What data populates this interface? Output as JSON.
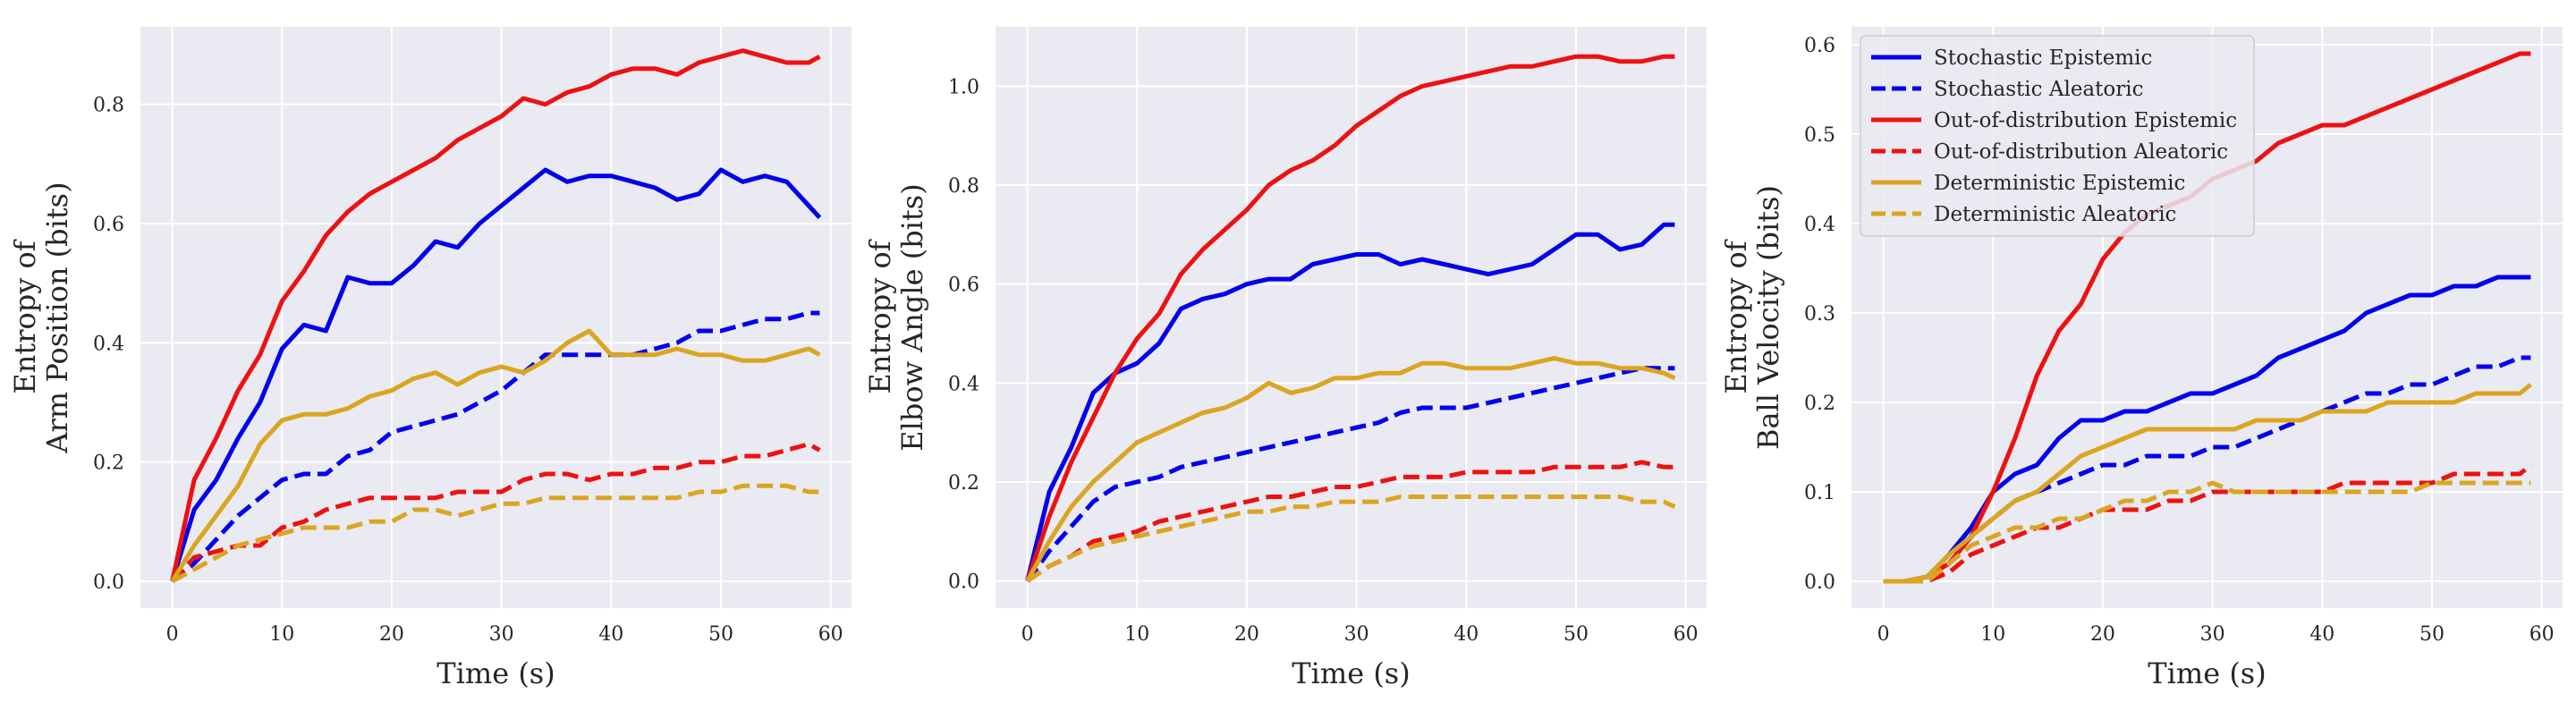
{
  "colors": {
    "background": "#eaeaf2",
    "grid": "#ffffff",
    "blue": "#0000ee",
    "red": "#ee1111",
    "gold": "#daa520"
  },
  "legend": {
    "location": "top-left of third panel",
    "entries": [
      {
        "label": "Stochastic Epistemic",
        "color": "#0000ee",
        "dash": false
      },
      {
        "label": "Stochastic Aleatoric",
        "color": "#0000ee",
        "dash": true
      },
      {
        "label": "Out-of-distribution Epistemic",
        "color": "#ee1111",
        "dash": false
      },
      {
        "label": "Out-of-distribution Aleatoric",
        "color": "#ee1111",
        "dash": true
      },
      {
        "label": "Deterministic Epistemic",
        "color": "#daa520",
        "dash": false
      },
      {
        "label": "Deterministic Aleatoric",
        "color": "#daa520",
        "dash": true
      }
    ]
  },
  "chart_data": [
    {
      "type": "line",
      "xlabel": "Time (s)",
      "ylabel_lines": [
        "Entropy of",
        "Arm Position (bits)"
      ],
      "xlim": [
        -2.9,
        61.9
      ],
      "ylim": [
        -0.045,
        0.93
      ],
      "xticks": [
        0,
        10,
        20,
        30,
        40,
        50,
        60
      ],
      "yticks": [
        0.0,
        0.2,
        0.4,
        0.6,
        0.8
      ],
      "ytick_labels": [
        "0.0",
        "0.2",
        "0.4",
        "0.6",
        "0.8"
      ],
      "grid": true,
      "x": [
        0,
        2,
        4,
        6,
        8,
        10,
        12,
        14,
        16,
        18,
        20,
        22,
        24,
        26,
        28,
        30,
        32,
        34,
        36,
        38,
        40,
        42,
        44,
        46,
        48,
        50,
        52,
        54,
        56,
        58,
        59
      ],
      "series": [
        {
          "name": "Stochastic Epistemic",
          "color": "#0000ee",
          "dash": false,
          "values": [
            0.0,
            0.12,
            0.17,
            0.24,
            0.3,
            0.39,
            0.43,
            0.42,
            0.51,
            0.5,
            0.5,
            0.53,
            0.57,
            0.56,
            0.6,
            0.63,
            0.66,
            0.69,
            0.67,
            0.68,
            0.68,
            0.67,
            0.66,
            0.64,
            0.65,
            0.69,
            0.67,
            0.68,
            0.67,
            0.63,
            0.61
          ]
        },
        {
          "name": "Stochastic Aleatoric",
          "color": "#0000ee",
          "dash": true,
          "values": [
            0.0,
            0.03,
            0.07,
            0.11,
            0.14,
            0.17,
            0.18,
            0.18,
            0.21,
            0.22,
            0.25,
            0.26,
            0.27,
            0.28,
            0.3,
            0.32,
            0.35,
            0.38,
            0.38,
            0.38,
            0.38,
            0.38,
            0.39,
            0.4,
            0.42,
            0.42,
            0.43,
            0.44,
            0.44,
            0.45,
            0.45
          ]
        },
        {
          "name": "Out-of-distribution Epistemic",
          "color": "#ee1111",
          "dash": false,
          "values": [
            0.0,
            0.17,
            0.24,
            0.32,
            0.38,
            0.47,
            0.52,
            0.58,
            0.62,
            0.65,
            0.67,
            0.69,
            0.71,
            0.74,
            0.76,
            0.78,
            0.81,
            0.8,
            0.82,
            0.83,
            0.85,
            0.86,
            0.86,
            0.85,
            0.87,
            0.88,
            0.89,
            0.88,
            0.87,
            0.87,
            0.88
          ]
        },
        {
          "name": "Out-of-distribution Aleatoric",
          "color": "#ee1111",
          "dash": true,
          "values": [
            0.0,
            0.04,
            0.05,
            0.06,
            0.06,
            0.09,
            0.1,
            0.12,
            0.13,
            0.14,
            0.14,
            0.14,
            0.14,
            0.15,
            0.15,
            0.15,
            0.17,
            0.18,
            0.18,
            0.17,
            0.18,
            0.18,
            0.19,
            0.19,
            0.2,
            0.2,
            0.21,
            0.21,
            0.22,
            0.23,
            0.22
          ]
        },
        {
          "name": "Deterministic Epistemic",
          "color": "#daa520",
          "dash": false,
          "values": [
            0.0,
            0.06,
            0.11,
            0.16,
            0.23,
            0.27,
            0.28,
            0.28,
            0.29,
            0.31,
            0.32,
            0.34,
            0.35,
            0.33,
            0.35,
            0.36,
            0.35,
            0.37,
            0.4,
            0.42,
            0.38,
            0.38,
            0.38,
            0.39,
            0.38,
            0.38,
            0.37,
            0.37,
            0.38,
            0.39,
            0.38
          ]
        },
        {
          "name": "Deterministic Aleatoric",
          "color": "#daa520",
          "dash": true,
          "values": [
            0.0,
            0.02,
            0.04,
            0.06,
            0.07,
            0.08,
            0.09,
            0.09,
            0.09,
            0.1,
            0.1,
            0.12,
            0.12,
            0.11,
            0.12,
            0.13,
            0.13,
            0.14,
            0.14,
            0.14,
            0.14,
            0.14,
            0.14,
            0.14,
            0.15,
            0.15,
            0.16,
            0.16,
            0.16,
            0.15,
            0.15
          ]
        }
      ]
    },
    {
      "type": "line",
      "xlabel": "Time (s)",
      "ylabel_lines": [
        "Entropy of",
        "Elbow Angle (bits)"
      ],
      "xlim": [
        -2.9,
        61.9
      ],
      "ylim": [
        -0.055,
        1.12
      ],
      "xticks": [
        0,
        10,
        20,
        30,
        40,
        50,
        60
      ],
      "yticks": [
        0.0,
        0.2,
        0.4,
        0.6,
        0.8,
        1.0
      ],
      "ytick_labels": [
        "0.0",
        "0.2",
        "0.4",
        "0.6",
        "0.8",
        "1.0"
      ],
      "grid": true,
      "x": [
        0,
        2,
        4,
        6,
        8,
        10,
        12,
        14,
        16,
        18,
        20,
        22,
        24,
        26,
        28,
        30,
        32,
        34,
        36,
        38,
        40,
        42,
        44,
        46,
        48,
        50,
        52,
        54,
        56,
        58,
        59
      ],
      "series": [
        {
          "name": "Stochastic Epistemic",
          "color": "#0000ee",
          "dash": false,
          "values": [
            0.0,
            0.18,
            0.27,
            0.38,
            0.42,
            0.44,
            0.48,
            0.55,
            0.57,
            0.58,
            0.6,
            0.61,
            0.61,
            0.64,
            0.65,
            0.66,
            0.66,
            0.64,
            0.65,
            0.64,
            0.63,
            0.62,
            0.63,
            0.64,
            0.67,
            0.7,
            0.7,
            0.67,
            0.68,
            0.72,
            0.72
          ]
        },
        {
          "name": "Stochastic Aleatoric",
          "color": "#0000ee",
          "dash": true,
          "values": [
            0.0,
            0.06,
            0.11,
            0.16,
            0.19,
            0.2,
            0.21,
            0.23,
            0.24,
            0.25,
            0.26,
            0.27,
            0.28,
            0.29,
            0.3,
            0.31,
            0.32,
            0.34,
            0.35,
            0.35,
            0.35,
            0.36,
            0.37,
            0.38,
            0.39,
            0.4,
            0.41,
            0.42,
            0.43,
            0.43,
            0.43
          ]
        },
        {
          "name": "Out-of-distribution Epistemic",
          "color": "#ee1111",
          "dash": false,
          "values": [
            0.0,
            0.13,
            0.24,
            0.33,
            0.42,
            0.49,
            0.54,
            0.62,
            0.67,
            0.71,
            0.75,
            0.8,
            0.83,
            0.85,
            0.88,
            0.92,
            0.95,
            0.98,
            1.0,
            1.01,
            1.02,
            1.03,
            1.04,
            1.04,
            1.05,
            1.06,
            1.06,
            1.05,
            1.05,
            1.06,
            1.06
          ]
        },
        {
          "name": "Out-of-distribution Aleatoric",
          "color": "#ee1111",
          "dash": true,
          "values": [
            0.0,
            0.03,
            0.05,
            0.08,
            0.09,
            0.1,
            0.12,
            0.13,
            0.14,
            0.15,
            0.16,
            0.17,
            0.17,
            0.18,
            0.19,
            0.19,
            0.2,
            0.21,
            0.21,
            0.21,
            0.22,
            0.22,
            0.22,
            0.22,
            0.23,
            0.23,
            0.23,
            0.23,
            0.24,
            0.23,
            0.23
          ]
        },
        {
          "name": "Deterministic Epistemic",
          "color": "#daa520",
          "dash": false,
          "values": [
            0.0,
            0.08,
            0.15,
            0.2,
            0.24,
            0.28,
            0.3,
            0.32,
            0.34,
            0.35,
            0.37,
            0.4,
            0.38,
            0.39,
            0.41,
            0.41,
            0.42,
            0.42,
            0.44,
            0.44,
            0.43,
            0.43,
            0.43,
            0.44,
            0.45,
            0.44,
            0.44,
            0.43,
            0.43,
            0.42,
            0.41
          ]
        },
        {
          "name": "Deterministic Aleatoric",
          "color": "#daa520",
          "dash": true,
          "values": [
            0.0,
            0.03,
            0.05,
            0.07,
            0.08,
            0.09,
            0.1,
            0.11,
            0.12,
            0.13,
            0.14,
            0.14,
            0.15,
            0.15,
            0.16,
            0.16,
            0.16,
            0.17,
            0.17,
            0.17,
            0.17,
            0.17,
            0.17,
            0.17,
            0.17,
            0.17,
            0.17,
            0.17,
            0.16,
            0.16,
            0.15
          ]
        }
      ]
    },
    {
      "type": "line",
      "xlabel": "Time (s)",
      "ylabel_lines": [
        "Entropy of",
        "Ball Velocity (bits)"
      ],
      "xlim": [
        -2.9,
        61.9
      ],
      "ylim": [
        -0.03,
        0.62
      ],
      "xticks": [
        0,
        10,
        20,
        30,
        40,
        50,
        60
      ],
      "yticks": [
        0.0,
        0.1,
        0.2,
        0.3,
        0.4,
        0.5,
        0.6
      ],
      "ytick_labels": [
        "0.0",
        "0.1",
        "0.2",
        "0.3",
        "0.4",
        "0.5",
        "0.6"
      ],
      "grid": true,
      "x": [
        0,
        2,
        4,
        6,
        8,
        10,
        12,
        14,
        16,
        18,
        20,
        22,
        24,
        26,
        28,
        30,
        32,
        34,
        36,
        38,
        40,
        42,
        44,
        46,
        48,
        50,
        52,
        54,
        56,
        58,
        59
      ],
      "series": [
        {
          "name": "Stochastic Epistemic",
          "color": "#0000ee",
          "dash": false,
          "values": [
            0.0,
            0.0,
            0.005,
            0.03,
            0.06,
            0.1,
            0.12,
            0.13,
            0.16,
            0.18,
            0.18,
            0.19,
            0.19,
            0.2,
            0.21,
            0.21,
            0.22,
            0.23,
            0.25,
            0.26,
            0.27,
            0.28,
            0.3,
            0.31,
            0.32,
            0.32,
            0.33,
            0.33,
            0.34,
            0.34,
            0.34
          ]
        },
        {
          "name": "Stochastic Aleatoric",
          "color": "#0000ee",
          "dash": true,
          "values": [
            0.0,
            0.0,
            0.0,
            0.02,
            0.05,
            0.07,
            0.09,
            0.1,
            0.11,
            0.12,
            0.13,
            0.13,
            0.14,
            0.14,
            0.14,
            0.15,
            0.15,
            0.16,
            0.17,
            0.18,
            0.19,
            0.2,
            0.21,
            0.21,
            0.22,
            0.22,
            0.23,
            0.24,
            0.24,
            0.25,
            0.25
          ]
        },
        {
          "name": "Out-of-distribution Epistemic",
          "color": "#ee1111",
          "dash": false,
          "values": [
            0.0,
            0.0,
            0.005,
            0.02,
            0.05,
            0.1,
            0.16,
            0.23,
            0.28,
            0.31,
            0.36,
            0.39,
            0.41,
            0.42,
            0.43,
            0.45,
            0.46,
            0.47,
            0.49,
            0.5,
            0.51,
            0.51,
            0.52,
            0.53,
            0.54,
            0.55,
            0.56,
            0.57,
            0.58,
            0.59,
            0.59
          ]
        },
        {
          "name": "Out-of-distribution Aleatoric",
          "color": "#ee1111",
          "dash": true,
          "values": [
            0.0,
            0.0,
            0.0,
            0.01,
            0.03,
            0.04,
            0.05,
            0.06,
            0.06,
            0.07,
            0.08,
            0.08,
            0.08,
            0.09,
            0.09,
            0.1,
            0.1,
            0.1,
            0.1,
            0.1,
            0.1,
            0.11,
            0.11,
            0.11,
            0.11,
            0.11,
            0.12,
            0.12,
            0.12,
            0.12,
            0.13
          ]
        },
        {
          "name": "Deterministic Epistemic",
          "color": "#daa520",
          "dash": false,
          "values": [
            0.0,
            0.0,
            0.005,
            0.03,
            0.05,
            0.07,
            0.09,
            0.1,
            0.12,
            0.14,
            0.15,
            0.16,
            0.17,
            0.17,
            0.17,
            0.17,
            0.17,
            0.18,
            0.18,
            0.18,
            0.19,
            0.19,
            0.19,
            0.2,
            0.2,
            0.2,
            0.2,
            0.21,
            0.21,
            0.21,
            0.22
          ]
        },
        {
          "name": "Deterministic Aleatoric",
          "color": "#daa520",
          "dash": true,
          "values": [
            0.0,
            0.0,
            0.0,
            0.02,
            0.04,
            0.05,
            0.06,
            0.06,
            0.07,
            0.07,
            0.08,
            0.09,
            0.09,
            0.1,
            0.1,
            0.11,
            0.1,
            0.1,
            0.1,
            0.1,
            0.1,
            0.1,
            0.1,
            0.1,
            0.1,
            0.11,
            0.11,
            0.11,
            0.11,
            0.11,
            0.11
          ]
        }
      ]
    }
  ]
}
